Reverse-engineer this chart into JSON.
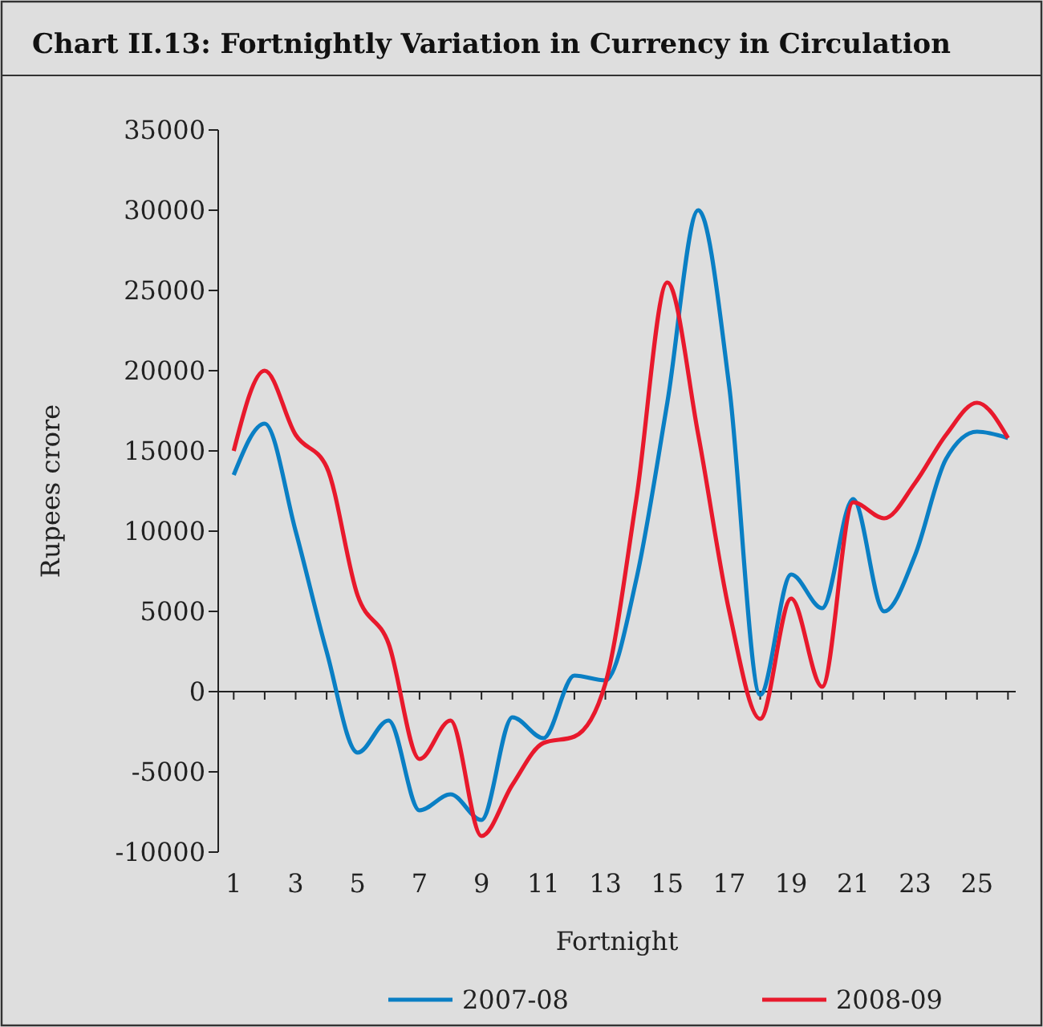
{
  "chart_data": {
    "type": "line",
    "title": "Chart II.13: Fortnightly Variation in Currency in Circulation",
    "xlabel": "Fortnight",
    "ylabel": "Rupees crore",
    "x": [
      1,
      2,
      3,
      4,
      5,
      6,
      7,
      8,
      9,
      10,
      11,
      12,
      13,
      14,
      15,
      16,
      17,
      18,
      19,
      20,
      21,
      22,
      23,
      24,
      25,
      26
    ],
    "series": [
      {
        "name": "2007-08",
        "color": "#0a7fc4",
        "values": [
          13500,
          16700,
          10000,
          2500,
          -3800,
          -1800,
          -7400,
          -6400,
          -8000,
          -1600,
          -2900,
          1000,
          700,
          7000,
          18000,
          30000,
          19000,
          -200,
          7300,
          5200,
          12000,
          5000,
          8500,
          14500,
          16200,
          15800
        ]
      },
      {
        "name": "2008-09",
        "color": "#e8192c",
        "values": [
          15000,
          20000,
          16000,
          14000,
          6000,
          3000,
          -4200,
          -1800,
          -9000,
          -5800,
          -3200,
          -2800,
          500,
          12000,
          25500,
          16000,
          5000,
          -1700,
          5800,
          300,
          11800,
          10800,
          13000,
          16000,
          18000,
          15800
        ]
      }
    ],
    "xlim": [
      0.5,
      26.25
    ],
    "xticks": [
      1,
      {
        "value": 2,
        "label": null
      },
      3,
      {
        "value": 4,
        "label": null
      },
      5,
      {
        "value": 6,
        "label": null
      },
      7,
      {
        "value": 8,
        "label": null
      },
      9,
      {
        "value": 10,
        "label": null
      },
      11,
      {
        "value": 12,
        "label": null
      },
      13,
      {
        "value": 14,
        "label": null
      },
      15,
      {
        "value": 16,
        "label": null
      },
      17,
      {
        "value": 18,
        "label": null
      },
      19,
      {
        "value": 20,
        "label": null
      },
      21,
      {
        "value": 22,
        "label": null
      },
      23,
      {
        "value": 24,
        "label": null
      },
      25,
      {
        "value": 26,
        "label": null
      }
    ],
    "ylim": [
      -10000,
      35000
    ],
    "yticks": [
      -10000,
      -5000,
      0,
      5000,
      10000,
      15000,
      20000,
      25000,
      30000,
      35000
    ],
    "legend": "bottom",
    "marker": "none",
    "line_style": "solid"
  }
}
